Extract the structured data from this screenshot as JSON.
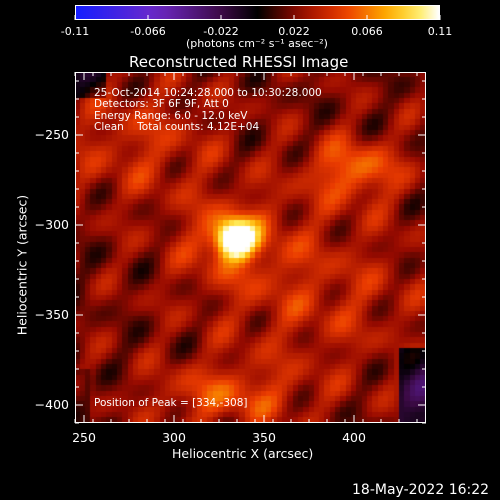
{
  "colorbar": {
    "ticks": [
      "-0.11",
      "-0.066",
      "-0.022",
      "0.022",
      "0.066",
      "0.11"
    ],
    "unit": "(photons cm⁻² s⁻¹ asec⁻²)",
    "range": [
      -0.11,
      0.11
    ]
  },
  "chart_data": {
    "type": "heatmap",
    "title": "Reconstructed RHESSI Image",
    "xlabel": "Heliocentric X (arcsec)",
    "ylabel": "Heliocentric Y (arcsec)",
    "xlim": [
      245,
      440
    ],
    "ylim": [
      -410,
      -215
    ],
    "xticks": [
      250,
      300,
      350,
      400
    ],
    "yticks": [
      -250,
      -300,
      -350,
      -400
    ],
    "color_scale": "black-purple-red-orange-yellow-white",
    "info_lines": [
      "25-Oct-2014 10:24:28.000 to 10:30:28.000",
      "Detectors: 3F 6F 9F, Att 0",
      "Energy Range: 6.0 - 12.0 keV",
      "Clean    Total counts: 4.12E+04"
    ],
    "peak_label": "Position of Peak = [334,-308]",
    "peak": {
      "x": 334,
      "y": -308,
      "value": 0.11
    }
  },
  "footer": {
    "date": "18-May-2022 16:22"
  }
}
